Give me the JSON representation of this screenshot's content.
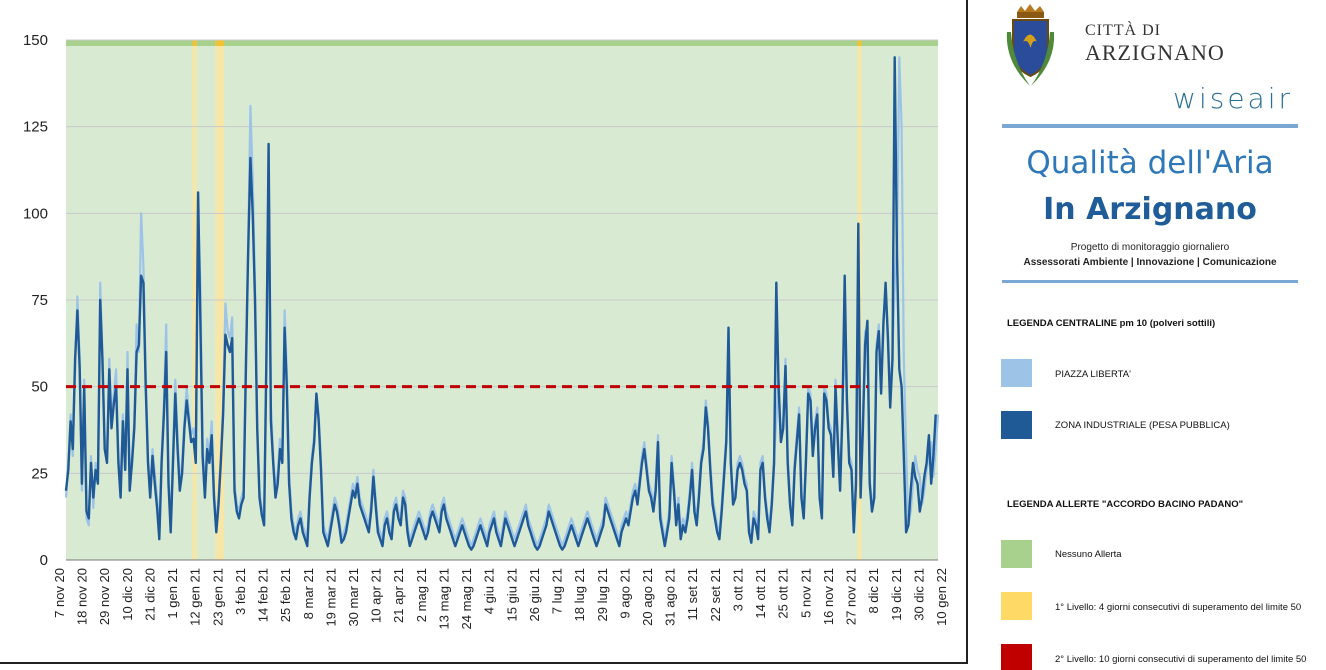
{
  "chart_data": {
    "type": "line",
    "y_ticks": [
      "0",
      "25",
      "50",
      "75",
      "100",
      "125",
      "150"
    ],
    "ylim": [
      0,
      150
    ],
    "x_tick_labels": [
      "7 nov 20",
      "18 nov 20",
      "29 nov 20",
      "10 dic 20",
      "21 dic 20",
      "1 gen 21",
      "12 gen 21",
      "23 gen 21",
      "3 feb 21",
      "14 feb 21",
      "25 feb 21",
      "8 mar 21",
      "19 mar 21",
      "30 mar 21",
      "10 apr 21",
      "21 apr 21",
      "2 mag 21",
      "13 mag 21",
      "24 mag 21",
      "4 giu 21",
      "15 giu 21",
      "26 giu 21",
      "7 lug 21",
      "18 lug 21",
      "29 lug 21",
      "9 ago 21",
      "20 ago 21",
      "31 ago 21",
      "11 set 21",
      "22 set 21",
      "3 ott 21",
      "14 ott 21",
      "25 ott 21",
      "5 nov 21",
      "16 nov 21",
      "27 nov 21",
      "8 dic 21",
      "19 dic 21",
      "30 dic 21",
      "10 gen 22"
    ],
    "threshold": 50,
    "grid": true,
    "series": [
      {
        "name": "PIAZZA LIBERTA'",
        "color": "#9dc3e6",
        "values": [
          18,
          28,
          42,
          30,
          55,
          76,
          58,
          20,
          52,
          12,
          10,
          30,
          15,
          28,
          24,
          80,
          60,
          35,
          30,
          58,
          40,
          48,
          55,
          30,
          20,
          42,
          28,
          60,
          22,
          30,
          40,
          68,
          60,
          100,
          85,
          55,
          30,
          20,
          32,
          25,
          18,
          8,
          30,
          45,
          68,
          24,
          10,
          32,
          52,
          35,
          22,
          28,
          40,
          50,
          42,
          36,
          38,
          30,
          100,
          80,
          34,
          20,
          35,
          30,
          40,
          20,
          10,
          18,
          30,
          45,
          74,
          66,
          64,
          70,
          22,
          16,
          14,
          18,
          20,
          60,
          90,
          131,
          110,
          80,
          40,
          20,
          15,
          12,
          62,
          114,
          45,
          30,
          20,
          25,
          35,
          30,
          72,
          55,
          25,
          14,
          10,
          8,
          12,
          14,
          10,
          8,
          6,
          20,
          30,
          36,
          48,
          42,
          28,
          10,
          8,
          6,
          10,
          14,
          18,
          16,
          12,
          6,
          8,
          10,
          14,
          18,
          22,
          20,
          24,
          18,
          16,
          14,
          12,
          10,
          16,
          26,
          18,
          10,
          8,
          6,
          12,
          14,
          10,
          8,
          16,
          18,
          14,
          12,
          20,
          18,
          10,
          6,
          8,
          10,
          12,
          14,
          12,
          10,
          8,
          10,
          14,
          16,
          14,
          12,
          10,
          16,
          18,
          14,
          12,
          10,
          8,
          6,
          8,
          10,
          12,
          10,
          8,
          6,
          4,
          6,
          8,
          10,
          12,
          10,
          8,
          6,
          10,
          12,
          14,
          10,
          8,
          6,
          10,
          14,
          12,
          10,
          8,
          6,
          8,
          10,
          12,
          14,
          16,
          12,
          10,
          8,
          6,
          4,
          6,
          8,
          10,
          12,
          16,
          14,
          12,
          10,
          8,
          6,
          4,
          6,
          8,
          10,
          12,
          10,
          8,
          6,
          8,
          10,
          12,
          14,
          12,
          10,
          8,
          6,
          8,
          10,
          12,
          18,
          16,
          14,
          12,
          10,
          8,
          6,
          10,
          12,
          14,
          12,
          16,
          20,
          22,
          18,
          24,
          30,
          34,
          28,
          22,
          20,
          16,
          22,
          36,
          14,
          10,
          6,
          10,
          14,
          30,
          22,
          12,
          18,
          8,
          12,
          10,
          14,
          20,
          28,
          16,
          12,
          20,
          30,
          34,
          46,
          40,
          28,
          18,
          14,
          10,
          8,
          16,
          26,
          36,
          52,
          30,
          18,
          20,
          28,
          30,
          28,
          24,
          22,
          10,
          6,
          14,
          12,
          8,
          28,
          30,
          20,
          14,
          10,
          18,
          30,
          40,
          52,
          36,
          40,
          58,
          30,
          18,
          12,
          28,
          36,
          44,
          20,
          14,
          30,
          50,
          48,
          32,
          40,
          44,
          20,
          14,
          50,
          48,
          40,
          38,
          26,
          52,
          36,
          22,
          44,
          60,
          48,
          30,
          28,
          10,
          24,
          78,
          20,
          40,
          66,
          60,
          24,
          16,
          20,
          62,
          68,
          50,
          70,
          76,
          66,
          46,
          60,
          80,
          90,
          145,
          125,
          58,
          32,
          10,
          14,
          22,
          30,
          26,
          24,
          16,
          20,
          26,
          30,
          34,
          24,
          32,
          42
        ]
      },
      {
        "name": "ZONA INDUSTRIALE (PESA PUBBLICA)",
        "color": "#1f5a96",
        "values": [
          20,
          26,
          40,
          32,
          58,
          72,
          55,
          22,
          50,
          14,
          12,
          28,
          18,
          26,
          22,
          75,
          58,
          32,
          28,
          55,
          38,
          45,
          50,
          28,
          18,
          40,
          26,
          55,
          20,
          28,
          38,
          60,
          62,
          82,
          80,
          50,
          28,
          18,
          30,
          22,
          15,
          6,
          28,
          42,
          60,
          22,
          8,
          28,
          48,
          32,
          20,
          25,
          38,
          46,
          40,
          34,
          35,
          28,
          106,
          70,
          30,
          18,
          32,
          28,
          36,
          18,
          8,
          16,
          28,
          42,
          65,
          62,
          60,
          64,
          20,
          14,
          12,
          16,
          18,
          55,
          88,
          116,
          100,
          75,
          38,
          18,
          13,
          10,
          58,
          120,
          40,
          28,
          18,
          22,
          32,
          28,
          67,
          50,
          22,
          12,
          8,
          6,
          10,
          12,
          8,
          6,
          4,
          18,
          28,
          34,
          48,
          40,
          26,
          8,
          6,
          4,
          8,
          12,
          16,
          14,
          10,
          5,
          6,
          8,
          12,
          16,
          20,
          18,
          22,
          16,
          14,
          12,
          10,
          8,
          14,
          24,
          16,
          8,
          6,
          4,
          10,
          12,
          8,
          6,
          14,
          16,
          12,
          10,
          18,
          16,
          8,
          4,
          6,
          8,
          10,
          12,
          10,
          8,
          6,
          8,
          12,
          14,
          12,
          10,
          8,
          14,
          16,
          12,
          10,
          8,
          6,
          4,
          6,
          8,
          10,
          8,
          6,
          4,
          3,
          4,
          6,
          8,
          10,
          8,
          6,
          4,
          8,
          10,
          12,
          8,
          6,
          4,
          8,
          12,
          10,
          8,
          6,
          4,
          6,
          8,
          10,
          12,
          14,
          10,
          8,
          6,
          4,
          3,
          4,
          6,
          8,
          10,
          14,
          12,
          10,
          8,
          6,
          4,
          3,
          4,
          6,
          8,
          10,
          8,
          6,
          4,
          6,
          8,
          10,
          12,
          10,
          8,
          6,
          4,
          6,
          8,
          10,
          16,
          14,
          12,
          10,
          8,
          6,
          4,
          8,
          10,
          12,
          10,
          14,
          18,
          20,
          16,
          22,
          28,
          32,
          26,
          20,
          18,
          14,
          20,
          34,
          12,
          8,
          4,
          8,
          12,
          28,
          20,
          10,
          16,
          6,
          10,
          8,
          12,
          18,
          26,
          14,
          10,
          18,
          28,
          32,
          44,
          38,
          26,
          16,
          12,
          8,
          6,
          14,
          24,
          34,
          67,
          28,
          16,
          18,
          26,
          28,
          26,
          22,
          20,
          8,
          5,
          12,
          10,
          6,
          26,
          28,
          18,
          12,
          8,
          16,
          28,
          80,
          50,
          34,
          38,
          56,
          28,
          16,
          10,
          26,
          34,
          42,
          18,
          12,
          28,
          48,
          46,
          30,
          38,
          42,
          18,
          12,
          48,
          46,
          38,
          36,
          24,
          50,
          34,
          20,
          42,
          82,
          46,
          28,
          26,
          8,
          22,
          97,
          18,
          38,
          62,
          69,
          22,
          14,
          18,
          60,
          66,
          48,
          68,
          80,
          64,
          44,
          58,
          145,
          88,
          55,
          50,
          30,
          8,
          10,
          20,
          28,
          24,
          22,
          14,
          18,
          24,
          28,
          36,
          22,
          30,
          42
        ]
      }
    ],
    "zones": [
      {
        "type": "yellow",
        "from_index": 56,
        "to_index": 57
      },
      {
        "type": "yellow",
        "from_index": 66,
        "to_index": 69
      },
      {
        "type": "yellow",
        "from_index": 348,
        "to_index": 349
      }
    ],
    "colors": {
      "green": "#d9ead3",
      "green_strip": "#a9d18e",
      "yellow": "#ffe599",
      "yellow_strip": "#f1c232",
      "threshold": "#c00000"
    }
  },
  "legend": {
    "city_small": "CITTÀ DI",
    "city_big": "ARZIGNANO",
    "brand": "wiseair",
    "title_line1": "Qualità dell'Aria",
    "title_line2": "In Arzignano",
    "subtitle1": "Progetto di monitoraggio giornaliero",
    "subtitle2": "Assessorati Ambiente | Innovazione | Comunicazione",
    "stations_heading": "LEGENDA CENTRALINE pm 10 (polveri sottili)",
    "station1": "PIAZZA LIBERTA'",
    "station2": "ZONA INDUSTRIALE (PESA PUBBLICA)",
    "alerts_heading": "LEGENDA ALLERTE \"ACCORDO BACINO PADANO\"",
    "alert0": "Nessuno Allerta",
    "alert1": "1° Livello: 4 giorni consecutivi di superamento del limite 50",
    "alert2": "2° Livello: 10 giorni consecutivi di superamento del limite 50",
    "colors": {
      "light_blue": "#9dc3e6",
      "dark_blue": "#1f5a96",
      "green": "#a9d18e",
      "yellow": "#ffd966",
      "red": "#c00000"
    }
  }
}
